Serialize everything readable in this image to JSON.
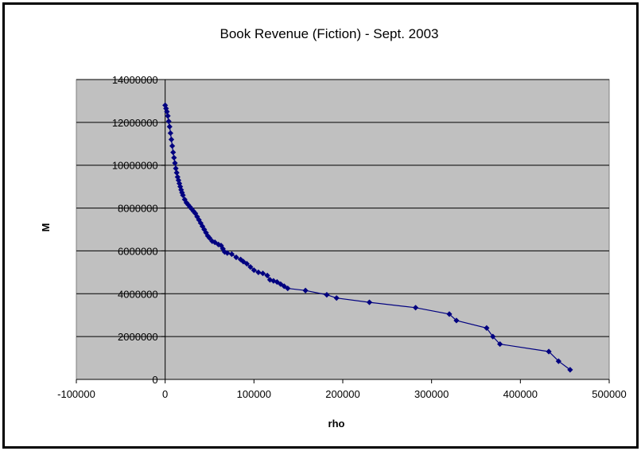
{
  "chart_data": {
    "type": "line",
    "title": "Book Revenue (Fiction) - Sept. 2003",
    "xlabel": "rho",
    "ylabel": "M",
    "xlim": [
      -100000,
      500000
    ],
    "ylim": [
      0,
      14000000
    ],
    "x_ticks": [
      -100000,
      0,
      100000,
      200000,
      300000,
      400000,
      500000
    ],
    "x_tick_labels": [
      "-100000",
      "0",
      "100000",
      "200000",
      "300000",
      "400000",
      "500000"
    ],
    "y_ticks": [
      0,
      2000000,
      4000000,
      6000000,
      8000000,
      10000000,
      12000000,
      14000000
    ],
    "y_tick_labels": [
      "0",
      "2000000",
      "4000000",
      "6000000",
      "8000000",
      "10000000",
      "12000000",
      "14000000"
    ],
    "grid": "horizontal",
    "plot_background": "#c0c0c0",
    "series_color": "#000080",
    "series": [
      {
        "name": "",
        "marker": "diamond",
        "points": [
          [
            0,
            12800000
          ],
          [
            1000,
            12650000
          ],
          [
            2000,
            12500000
          ],
          [
            3000,
            12300000
          ],
          [
            4000,
            12050000
          ],
          [
            5000,
            11800000
          ],
          [
            6000,
            11500000
          ],
          [
            7000,
            11200000
          ],
          [
            8000,
            10900000
          ],
          [
            9000,
            10600000
          ],
          [
            10000,
            10350000
          ],
          [
            11000,
            10100000
          ],
          [
            12000,
            9850000
          ],
          [
            13000,
            9650000
          ],
          [
            14000,
            9450000
          ],
          [
            15000,
            9300000
          ],
          [
            16000,
            9150000
          ],
          [
            17000,
            9000000
          ],
          [
            18000,
            8850000
          ],
          [
            19000,
            8720000
          ],
          [
            20000,
            8600000
          ],
          [
            22000,
            8400000
          ],
          [
            24000,
            8250000
          ],
          [
            26000,
            8150000
          ],
          [
            28000,
            8050000
          ],
          [
            30000,
            7950000
          ],
          [
            32000,
            7850000
          ],
          [
            34000,
            7750000
          ],
          [
            36000,
            7600000
          ],
          [
            38000,
            7450000
          ],
          [
            40000,
            7300000
          ],
          [
            42000,
            7150000
          ],
          [
            44000,
            7000000
          ],
          [
            46000,
            6850000
          ],
          [
            48000,
            6700000
          ],
          [
            50000,
            6600000
          ],
          [
            53000,
            6450000
          ],
          [
            56000,
            6400000
          ],
          [
            60000,
            6300000
          ],
          [
            63000,
            6250000
          ],
          [
            65000,
            6100000
          ],
          [
            67000,
            5950000
          ],
          [
            70000,
            5900000
          ],
          [
            75000,
            5850000
          ],
          [
            80000,
            5700000
          ],
          [
            85000,
            5600000
          ],
          [
            88000,
            5500000
          ],
          [
            92000,
            5400000
          ],
          [
            96000,
            5250000
          ],
          [
            100000,
            5100000
          ],
          [
            105000,
            5000000
          ],
          [
            110000,
            4950000
          ],
          [
            115000,
            4850000
          ],
          [
            118000,
            4650000
          ],
          [
            122000,
            4600000
          ],
          [
            126000,
            4550000
          ],
          [
            130000,
            4450000
          ],
          [
            134000,
            4350000
          ],
          [
            138000,
            4250000
          ],
          [
            158000,
            4150000
          ],
          [
            182000,
            3950000
          ],
          [
            193000,
            3800000
          ],
          [
            230000,
            3600000
          ],
          [
            282000,
            3350000
          ],
          [
            320000,
            3050000
          ],
          [
            328000,
            2750000
          ],
          [
            362000,
            2400000
          ],
          [
            369000,
            2000000
          ],
          [
            377000,
            1650000
          ],
          [
            432000,
            1300000
          ],
          [
            443000,
            850000
          ],
          [
            456000,
            450000
          ]
        ]
      }
    ]
  }
}
